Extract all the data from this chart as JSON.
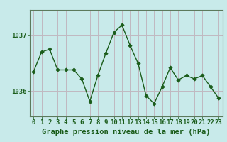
{
  "x": [
    0,
    1,
    2,
    3,
    4,
    5,
    6,
    7,
    8,
    9,
    10,
    11,
    12,
    13,
    14,
    15,
    16,
    17,
    18,
    19,
    20,
    21,
    22,
    23
  ],
  "y": [
    1036.35,
    1036.7,
    1036.75,
    1036.38,
    1036.38,
    1036.38,
    1036.22,
    1035.82,
    1036.28,
    1036.68,
    1037.05,
    1037.18,
    1036.82,
    1036.5,
    1035.92,
    1035.78,
    1036.08,
    1036.42,
    1036.2,
    1036.28,
    1036.22,
    1036.28,
    1036.08,
    1035.88
  ],
  "line_color": "#1a5c1a",
  "marker": "D",
  "bg_color": "#c8eaea",
  "grid_color_v": "#c0b8c0",
  "grid_color_h": "#c0b8c0",
  "axis_color": "#5c7a5c",
  "text_color": "#1a5c1a",
  "xlabel": "Graphe pression niveau de la mer (hPa)",
  "yticks": [
    1036,
    1037
  ],
  "ylim": [
    1035.55,
    1037.45
  ],
  "xlim": [
    -0.5,
    23.5
  ],
  "label_fontsize": 7.0,
  "tick_fontsize": 6.5,
  "xlabel_fontsize": 7.5
}
